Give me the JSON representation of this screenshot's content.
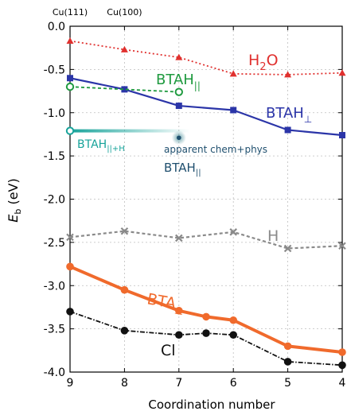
{
  "chart_data": {
    "type": "line",
    "title": "",
    "xlabel": "Coordination number",
    "ylabel_main": "E",
    "ylabel_sub": "b",
    "ylabel_unit": " (eV)",
    "x_ticks": [
      9,
      8,
      7,
      6,
      5,
      4
    ],
    "x_reversed": true,
    "xlim": [
      9,
      4
    ],
    "ylim": [
      -4.0,
      0.0
    ],
    "y_ticks": [
      0.0,
      -0.5,
      -1.0,
      -1.5,
      -2.0,
      -2.5,
      -3.0,
      -3.5,
      -4.0
    ],
    "y_tick_labels": [
      "0.0",
      "-0.5",
      "-1.0",
      "-1.5",
      "-2.0",
      "-2.5",
      "-3.0",
      "-3.5",
      "-4.0"
    ],
    "top_labels": [
      {
        "text": "Cu(111)",
        "x": 9
      },
      {
        "text": "Cu(100)",
        "x": 8
      }
    ],
    "grid": true,
    "series": [
      {
        "key": "h2o",
        "color": "#e0302e",
        "dash": "2,3",
        "marker": "triangle",
        "width": 1.8,
        "x": [
          9,
          8,
          7,
          6,
          5,
          4
        ],
        "y": [
          -0.17,
          -0.27,
          -0.36,
          -0.55,
          -0.56,
          -0.54
        ]
      },
      {
        "key": "btah_perp",
        "color": "#2b35a8",
        "dash": "",
        "marker": "square",
        "width": 2.2,
        "x": [
          9,
          8,
          7,
          6,
          5,
          4
        ],
        "y": [
          -0.6,
          -0.73,
          -0.92,
          -0.97,
          -1.2,
          -1.26
        ]
      },
      {
        "key": "btah_par",
        "color": "#1f9a3f",
        "dash": "4,3",
        "marker": "circle-open",
        "width": 1.8,
        "x": [
          9,
          7
        ],
        "y": [
          -0.7,
          -0.76
        ]
      },
      {
        "key": "h",
        "color": "#8a8a8a",
        "dash": "4,3",
        "marker": "x",
        "width": 2.2,
        "x": [
          9,
          8,
          7,
          6,
          5,
          4
        ],
        "y": [
          -2.44,
          -2.37,
          -2.45,
          -2.38,
          -2.57,
          -2.54
        ]
      },
      {
        "key": "bta_perp",
        "color": "#f06a2c",
        "dash": "",
        "marker": "circle",
        "width": 4,
        "x": [
          9,
          8,
          7,
          6.5,
          6,
          5,
          4
        ],
        "y": [
          -2.78,
          -3.05,
          -3.29,
          -3.36,
          -3.4,
          -3.7,
          -3.77
        ]
      },
      {
        "key": "cl",
        "color": "#111111",
        "dash": "6,2,1.5,2",
        "marker": "circle",
        "width": 1.8,
        "x": [
          9,
          8,
          7,
          6.5,
          6,
          5,
          4
        ],
        "y": [
          -3.3,
          -3.52,
          -3.57,
          -3.55,
          -3.57,
          -3.88,
          -3.92
        ]
      }
    ],
    "btah_par_h": {
      "x": 9,
      "y": -1.21,
      "x_end": 6.8,
      "color": "#17a39a"
    },
    "apparent_point": {
      "x": 7,
      "y": -1.29,
      "color": "#1f4f6e"
    },
    "labels": {
      "h2o": {
        "main": "H",
        "sub": "2",
        "rest": "O"
      },
      "btah_perp": {
        "main": "BTAH",
        "sub": "⊥"
      },
      "btah_par": {
        "main": "BTAH",
        "sub": "||"
      },
      "btah_par_h": {
        "main": "BTAH",
        "sub": "||+H"
      },
      "apparent": {
        "line1": "apparent chem+phys",
        "main": "BTAH",
        "sub": "||"
      },
      "h": {
        "main": "H"
      },
      "bta_perp": {
        "main": "BTA",
        "sub": "⊥"
      },
      "cl": {
        "main": "Cl"
      }
    }
  }
}
